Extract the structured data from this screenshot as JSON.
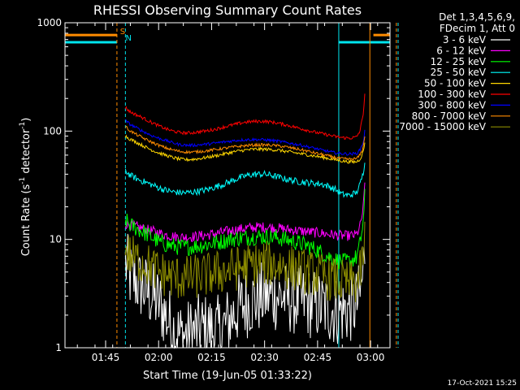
{
  "colors": {
    "background": "#000000",
    "axes": "#ffffff",
    "text": "#ffffff",
    "marker_S": "#ff8c00",
    "marker_N": "#00e5ee",
    "vline_orange": "#ff8c00",
    "vline_cyan": "#00e5ee",
    "vline_brown": "#ff8c00"
  },
  "chart_data": {
    "type": "line",
    "title": "RHESSI Observing Summary Count Rates",
    "xlabel": "Start Time (19-Jun-05 01:33:22)",
    "ylabel_parts": [
      "Count Rate (s",
      "-1",
      " detector",
      "-1",
      ")"
    ],
    "y_scale": "log",
    "ylim": [
      1,
      1000
    ],
    "y_ticks": [
      {
        "value": 1,
        "label": "1"
      },
      {
        "value": 10,
        "label": "10"
      },
      {
        "value": 100,
        "label": "100"
      },
      {
        "value": 1000,
        "label": "1000"
      }
    ],
    "xlim_minutes": [
      1.5,
      93.5
    ],
    "x_ticks": [
      {
        "minutes": 13,
        "label": "01:45"
      },
      {
        "minutes": 28,
        "label": "02:00"
      },
      {
        "minutes": 43,
        "label": "02:15"
      },
      {
        "minutes": 58,
        "label": "02:30"
      },
      {
        "minutes": 73,
        "label": "02:45"
      },
      {
        "minutes": 88,
        "label": "03:00"
      }
    ],
    "markers": [
      {
        "label": "S",
        "minutes": 17.8,
        "color": "#ff8c00"
      },
      {
        "label": "N",
        "minutes": 19.5,
        "color": "#00e5ee"
      }
    ],
    "vertical_lines": [
      {
        "minutes": 16.2,
        "color": "#ff8c00",
        "style": "dash"
      },
      {
        "minutes": 18.6,
        "color": "#00e5ee",
        "style": "dash"
      },
      {
        "minutes": 79.0,
        "color": "#00e5ee",
        "style": "solid"
      },
      {
        "minutes": 87.8,
        "color": "#ff8c00",
        "style": "solid"
      },
      {
        "minutes": 95.3,
        "color": "#ff8c00",
        "style": "dash"
      },
      {
        "minutes": 95.8,
        "color": "#00e5ee",
        "style": "dash"
      }
    ],
    "top_bars": [
      {
        "color": "#ff8c00",
        "value": 770,
        "segments": [
          [
            1.5,
            16.2
          ],
          [
            88.8,
            93.5
          ]
        ]
      },
      {
        "color": "#00e5ee",
        "value": 660,
        "segments": [
          [
            1.5,
            16.2
          ],
          [
            79.0,
            93.5
          ]
        ]
      }
    ],
    "legend_header": [
      "Det 1,3,4,5,6,9,",
      "FDecim 1, Att 0"
    ],
    "legend_position": "top-right",
    "x_minutes": [
      18.6,
      20,
      22,
      24,
      26,
      28,
      30,
      32,
      34,
      36,
      38,
      40,
      42,
      44,
      46,
      48,
      50,
      52,
      54,
      56,
      58,
      60,
      62,
      64,
      66,
      68,
      70,
      72,
      74,
      76,
      78,
      80,
      82,
      84,
      85,
      86,
      86.5
    ],
    "series": [
      {
        "name": "3 - 6 keV",
        "color": "#ffffff",
        "noise": 0.55,
        "values": [
          6,
          4.5,
          4,
          3.5,
          3,
          2.6,
          2,
          1.5,
          1.3,
          1.3,
          1.4,
          1.5,
          1.5,
          1.4,
          1.5,
          1.8,
          2.2,
          2.5,
          2.7,
          2.8,
          3,
          3,
          3,
          2.9,
          2.8,
          2.7,
          2.6,
          2.5,
          2.4,
          2.3,
          2.2,
          2.2,
          2.3,
          2.5,
          3,
          5,
          10
        ]
      },
      {
        "name": "6 - 12 keV",
        "color": "#ff00ff",
        "noise": 0.08,
        "values": [
          14,
          13.5,
          13,
          12.5,
          12,
          11.5,
          11,
          10.7,
          10.5,
          10.5,
          10.6,
          10.8,
          11,
          11.3,
          11.6,
          12,
          12.3,
          12.6,
          12.8,
          13,
          13,
          12.9,
          12.7,
          12.4,
          12.2,
          12,
          11.8,
          11.6,
          11.4,
          11.2,
          11,
          10.8,
          10.8,
          11,
          13,
          20,
          38
        ]
      },
      {
        "name": "12 - 25 keV",
        "color": "#00ff00",
        "noise": 0.13,
        "values": [
          15,
          13.5,
          12.5,
          11.5,
          10.5,
          9.5,
          9,
          8.7,
          8.5,
          8.5,
          8.6,
          8.8,
          9,
          9.3,
          9.6,
          10,
          10.2,
          10.4,
          10.5,
          10.6,
          10.6,
          10.5,
          10.3,
          10,
          9.6,
          9.2,
          8.8,
          8.2,
          7.6,
          7.0,
          6.5,
          6.2,
          6.3,
          6.8,
          9,
          15,
          30
        ]
      },
      {
        "name": "25 - 50 keV",
        "color": "#00ffff",
        "noise": 0.05,
        "values": [
          43,
          39,
          36,
          34,
          32,
          30,
          28.5,
          27.5,
          27,
          27,
          27.5,
          28,
          29,
          30.5,
          32,
          34,
          36,
          38,
          39.5,
          40,
          40,
          39,
          37.5,
          36,
          35,
          34,
          33.5,
          33,
          32.5,
          31,
          29,
          26,
          25.5,
          27,
          32,
          42,
          60
        ]
      },
      {
        "name": "50 - 100 keV",
        "color": "#ffd700",
        "noise": 0.025,
        "values": [
          90,
          84,
          78,
          72,
          67,
          63,
          60,
          57,
          55,
          54.5,
          55,
          56,
          57.5,
          59,
          61,
          63,
          65,
          66.5,
          67.5,
          68,
          68,
          67.5,
          66.5,
          65,
          63.5,
          62,
          60.5,
          59,
          57.5,
          56,
          54.5,
          53,
          52,
          52,
          55,
          65,
          85
        ]
      },
      {
        "name": "100 - 300 keV",
        "color": "#ff0000",
        "noise": 0.025,
        "values": [
          165,
          150,
          140,
          130,
          120,
          112,
          105,
          100,
          97,
          96,
          97,
          99,
          101,
          104,
          108,
          112,
          116,
          120,
          122,
          123,
          123,
          121,
          118,
          114,
          110,
          106,
          102,
          98,
          95,
          92,
          89,
          87,
          86,
          88,
          100,
          150,
          260
        ]
      },
      {
        "name": "300 - 800 keV",
        "color": "#0000ff",
        "noise": 0.022,
        "values": [
          125,
          115,
          106,
          98,
          91,
          86,
          82,
          78,
          75,
          74,
          74,
          75,
          76,
          77.5,
          79,
          80.5,
          82,
          83,
          83.5,
          83.5,
          83,
          82,
          80.5,
          78.5,
          76.5,
          74.5,
          72,
          69.5,
          67,
          65,
          63,
          62,
          61.5,
          62,
          67,
          80,
          110
        ]
      },
      {
        "name": "800 - 7000 keV",
        "color": "#ff8c00",
        "noise": 0.022,
        "values": [
          110,
          100,
          92,
          85,
          79,
          74,
          70,
          67,
          65,
          64,
          64,
          65,
          66,
          67.5,
          69,
          70.5,
          72,
          73,
          74,
          74.5,
          74.5,
          74,
          73,
          71.5,
          69.5,
          67.5,
          65.5,
          63,
          61,
          59,
          57,
          55.5,
          55,
          55.5,
          60,
          72,
          100
        ]
      },
      {
        "name": "7000 - 15000 keV",
        "color": "#8b8b00",
        "noise": 0.35,
        "values": [
          8,
          7,
          6.5,
          6,
          5.5,
          5,
          4.7,
          4.5,
          4.4,
          4.4,
          4.5,
          4.6,
          4.7,
          4.9,
          5,
          5.2,
          5.4,
          5.6,
          5.8,
          5.9,
          6,
          5.9,
          5.8,
          5.6,
          5.4,
          5.2,
          5,
          4.8,
          4.6,
          4.4,
          4.2,
          4.0,
          3.9,
          4.0,
          4.8,
          7,
          12
        ]
      }
    ]
  },
  "timestamp": "17-Oct-2021 15:25"
}
